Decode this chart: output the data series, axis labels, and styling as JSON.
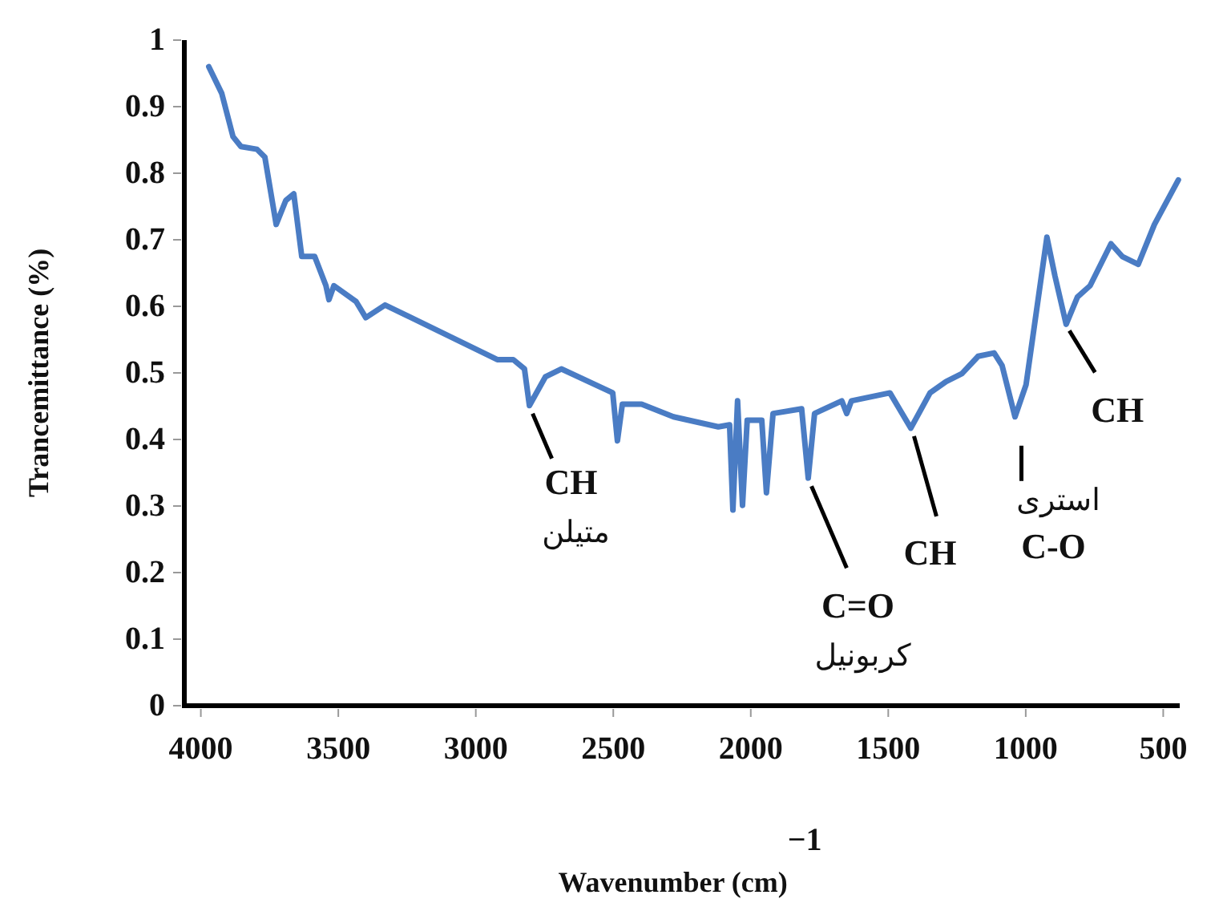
{
  "chart_data": {
    "type": "line",
    "xlabel": "Wavenumber (cm)$^{−1}$",
    "ylabel": "Trancemittance (%)",
    "xlim": [
      4060,
      440
    ],
    "ylim": [
      0,
      1
    ],
    "xticks": [
      4000,
      3500,
      3000,
      2500,
      2000,
      1500,
      1000,
      500
    ],
    "yticks": [
      0,
      0.1,
      0.2,
      0.3,
      0.4,
      0.5,
      0.6,
      0.7,
      0.8,
      0.9,
      1
    ],
    "series": [
      {
        "color": "#4a7cc4",
        "x": [
          3971,
          3924,
          3883,
          3854,
          3796,
          3767,
          3726,
          3691,
          3662,
          3633,
          3586,
          3545,
          3534,
          3516,
          3435,
          3400,
          3330,
          2922,
          2864,
          2823,
          2805,
          2747,
          2689,
          2502,
          2485,
          2467,
          2397,
          2281,
          2118,
          2077,
          2065,
          2048,
          2030,
          2013,
          1960,
          1943,
          1919,
          1815,
          1791,
          1768,
          1669,
          1651,
          1634,
          1494,
          1418,
          1348,
          1290,
          1232,
          1173,
          1115,
          1086,
          1039,
          999,
          923,
          894,
          853,
          812,
          766,
          690,
          649,
          591,
          532,
          445
        ],
        "values": [
          0.96,
          0.92,
          0.855,
          0.84,
          0.836,
          0.824,
          0.723,
          0.759,
          0.769,
          0.675,
          0.675,
          0.631,
          0.61,
          0.631,
          0.607,
          0.583,
          0.602,
          0.52,
          0.52,
          0.506,
          0.451,
          0.494,
          0.506,
          0.47,
          0.398,
          0.453,
          0.453,
          0.434,
          0.419,
          0.422,
          0.294,
          0.458,
          0.301,
          0.429,
          0.429,
          0.32,
          0.439,
          0.446,
          0.342,
          0.439,
          0.458,
          0.439,
          0.458,
          0.47,
          0.417,
          0.47,
          0.487,
          0.499,
          0.525,
          0.53,
          0.511,
          0.434,
          0.482,
          0.704,
          0.646,
          0.573,
          0.614,
          0.631,
          0.694,
          0.675,
          0.663,
          0.723,
          0.79
        ]
      }
    ],
    "annotations": [
      {
        "text": "CH\nمتیلن",
        "x": 2805,
        "y": 0.451
      },
      {
        "text": "C=O\nکربونیل",
        "x": 1791,
        "y": 0.342
      },
      {
        "text": "CH",
        "x": 1418,
        "y": 0.417
      },
      {
        "text": "استری\nC-O",
        "x": 1039,
        "y": 0.434
      },
      {
        "text": "CH",
        "x": 853,
        "y": 0.573
      }
    ]
  }
}
